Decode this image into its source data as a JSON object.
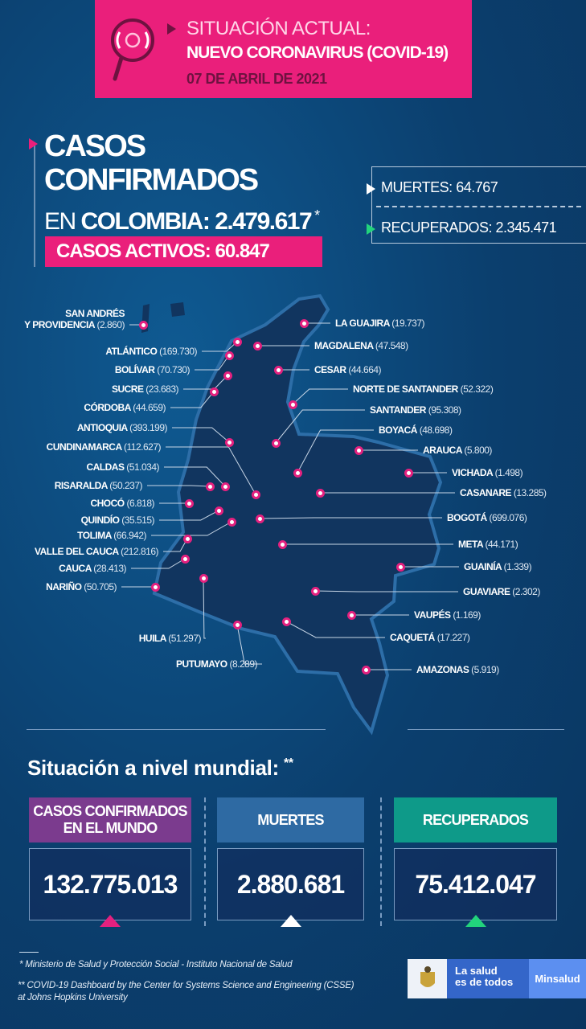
{
  "header": {
    "line1": "SITUACIÓN ACTUAL:",
    "line2": "NUEVO CORONAVIRUS (COVID-19)",
    "date": "07 DE ABRIL DE 2021",
    "icon": "magnifier-virus-icon"
  },
  "colombia": {
    "title1": "CASOS",
    "title2": "CONFIRMADOS",
    "title3_prefix": "EN",
    "title3_bold": "COLOMBIA:",
    "total": "2.479.617",
    "asterisk": "*",
    "active_label": "CASOS ACTIVOS:",
    "active_value": "60.847",
    "deaths_label": "MUERTES:",
    "deaths_value": "64.767",
    "recovered_label": "RECUPERADOS:",
    "recovered_value": "2.345.471"
  },
  "departments_left": [
    {
      "name": "SAN ANDRÉS",
      "name2": "Y PROVIDENCIA",
      "value": "(2.860)"
    },
    {
      "name": "ATLÁNTICO",
      "value": "(169.730)"
    },
    {
      "name": "BOLÍVAR",
      "value": "(70.730)"
    },
    {
      "name": "SUCRE",
      "value": "(23.683)"
    },
    {
      "name": "CÓRDOBA",
      "value": "(44.659)"
    },
    {
      "name": "ANTIOQUIA",
      "value": "(393.199)"
    },
    {
      "name": "CUNDINAMARCA",
      "value": "(112.627)"
    },
    {
      "name": "CALDAS",
      "value": "(51.034)"
    },
    {
      "name": "RISARALDA",
      "value": "(50.237)"
    },
    {
      "name": "CHOCÓ",
      "value": "(6.818)"
    },
    {
      "name": "QUINDÍO",
      "value": "(35.515)"
    },
    {
      "name": "TOLIMA",
      "value": "(66.942)"
    },
    {
      "name": "VALLE DEL CAUCA",
      "value": "(212.816)"
    },
    {
      "name": "CAUCA",
      "value": "(28.413)"
    },
    {
      "name": "NARIÑO",
      "value": "(50.705)"
    },
    {
      "name": "HUILA",
      "value": "(51.297)"
    },
    {
      "name": "PUTUMAYO",
      "value": "(8.289)"
    }
  ],
  "departments_right": [
    {
      "name": "LA GUAJIRA",
      "value": "(19.737)"
    },
    {
      "name": "MAGDALENA",
      "value": "(47.548)"
    },
    {
      "name": "CESAR",
      "value": "(44.664)"
    },
    {
      "name": "NORTE DE SANTANDER",
      "value": "(52.322)"
    },
    {
      "name": "SANTANDER",
      "value": "(95.308)"
    },
    {
      "name": "BOYACÁ",
      "value": "(48.698)"
    },
    {
      "name": "ARAUCA",
      "value": "(5.800)"
    },
    {
      "name": "VICHADA",
      "value": "(1.498)"
    },
    {
      "name": "CASANARE",
      "value": "(13.285)"
    },
    {
      "name": "BOGOTÁ",
      "value": "(699.076)"
    },
    {
      "name": "META",
      "value": "(44.171)"
    },
    {
      "name": "GUAINÍA",
      "value": "(1.339)"
    },
    {
      "name": "GUAVIARE",
      "value": "(2.302)"
    },
    {
      "name": "VAUPÉS",
      "value": "(1.169)"
    },
    {
      "name": "CAQUETÁ",
      "value": "(17.227)"
    },
    {
      "name": "AMAZONAS",
      "value": "(5.919)"
    }
  ],
  "world": {
    "title": "Situación a nivel mundial:",
    "asterisk": "**",
    "cards": [
      {
        "label1": "CASOS CONFIRMADOS",
        "label2": "EN EL MUNDO",
        "value": "132.775.013",
        "color": "#7b3b8e",
        "arrow": "#e4217f"
      },
      {
        "label1": "MUERTES",
        "label2": "",
        "value": "2.880.681",
        "color": "#2e6aa3",
        "arrow": "#ffffff"
      },
      {
        "label1": "RECUPERADOS",
        "label2": "",
        "value": "75.412.047",
        "color": "#0e9a89",
        "arrow": "#22d37c"
      }
    ]
  },
  "footer": {
    "note1": "* Ministerio de Salud y Protección Social - Instituto Nacional de Salud",
    "note2": "** COVID-19 Dashboard by the Center for Systems Science and Engineering (CSSE)",
    "note3": "at Johns Hopkins University",
    "logo_line1": "La salud",
    "logo_line2": "es de todos",
    "logo_brand": "Minsalud"
  },
  "colors": {
    "pink": "#ea1f7b",
    "navy": "#0b3f6e",
    "teal": "#0e9a89",
    "purple": "#7b3b8e"
  }
}
